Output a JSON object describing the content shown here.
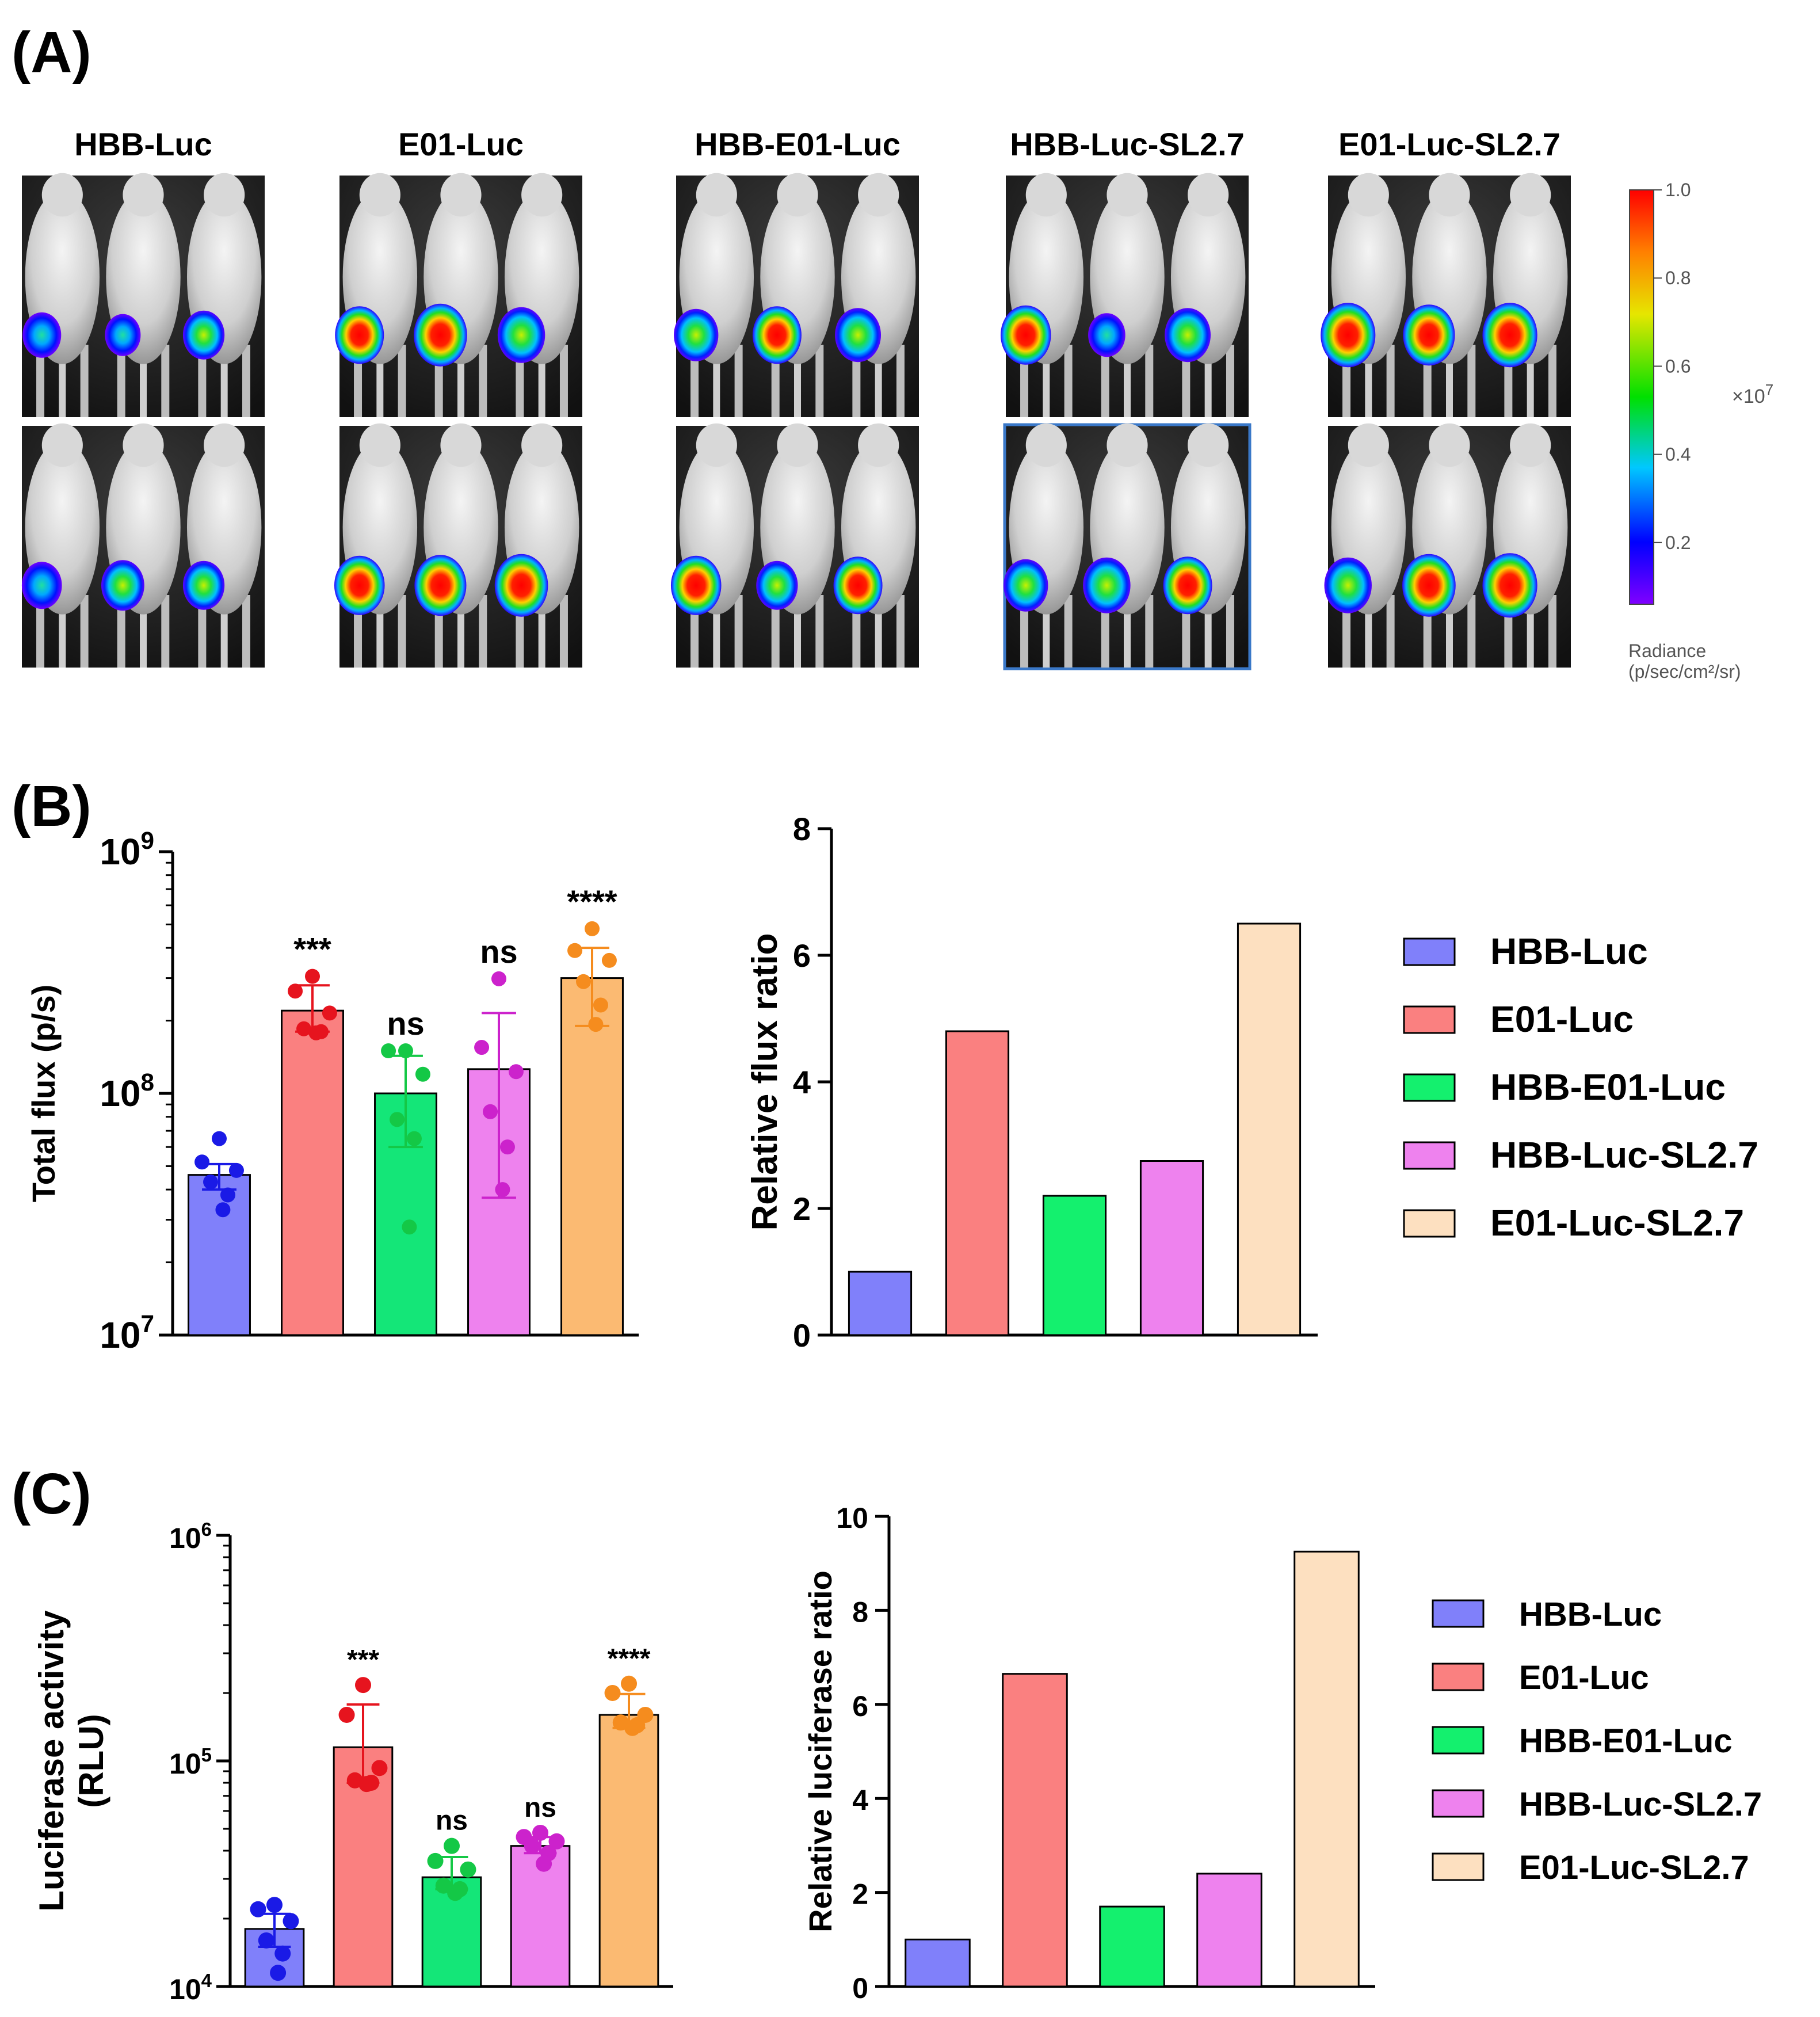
{
  "panels": {
    "a": {
      "label": "(A)"
    },
    "b": {
      "label": "(B)"
    },
    "c": {
      "label": "(C)"
    }
  },
  "imaging": {
    "groups": [
      "HBB-Luc",
      "E01-Luc",
      "HBB-E01-Luc",
      "HBB-Luc-SL2.7",
      "E01-Luc-SL2.7"
    ],
    "intensity": [
      [
        0.45,
        0.35,
        0.55
      ],
      [
        0.8,
        0.95,
        0.75
      ],
      [
        0.65,
        0.8,
        0.7
      ],
      [
        0.85,
        0.4,
        0.7
      ],
      [
        1.0,
        0.9,
        1.0
      ],
      [
        0.5,
        0.6,
        0.55
      ],
      [
        0.85,
        0.9,
        0.95
      ],
      [
        0.85,
        0.55,
        0.8
      ],
      [
        0.65,
        0.75,
        0.8
      ],
      [
        0.75,
        0.95,
        1.0
      ]
    ],
    "colorbar": {
      "ticks": [
        "1.0",
        "0.8",
        "0.6",
        "0.4",
        "0.2"
      ],
      "tick_values": [
        1.0,
        0.8,
        0.6,
        0.4,
        0.2
      ],
      "range": [
        0.06,
        1.0
      ],
      "multiplier": "×10",
      "exponent": "7",
      "title": "Radiance",
      "units": "(p/sec/cm²/sr)"
    }
  },
  "colors": {
    "group_fills": [
      "#8080fa",
      "#fa8080",
      "#14e678",
      "#ee82ee",
      "#fbba72"
    ],
    "group_points": [
      "#1a1ae6",
      "#e6141e",
      "#14c846",
      "#cc22cc",
      "#f58c1e"
    ],
    "ratio_fills": [
      "#8080fa",
      "#fa8080",
      "#14f06e",
      "#ee82ee",
      "#fde0c0"
    ]
  },
  "chart_data": [
    {
      "id": "b-left",
      "type": "bar",
      "scale": "log",
      "ylabel": "Total flux (p/s)",
      "ylim": [
        10000000,
        1000000000
      ],
      "yticks": [
        {
          "base": "10",
          "exp": "7"
        },
        {
          "base": "10",
          "exp": "8"
        },
        {
          "base": "10",
          "exp": "9"
        }
      ],
      "categories": [
        "HBB-Luc",
        "E01-Luc",
        "HBB-E01-Luc",
        "HBB-Luc-SL2.7",
        "E01-Luc-SL2.7"
      ],
      "values": [
        46000000,
        220000000,
        100000000,
        126000000,
        300000000
      ],
      "errors": [
        [
          40000000,
          51000000
        ],
        [
          180000000,
          280000000
        ],
        [
          60000000,
          143000000
        ],
        [
          37000000,
          215000000
        ],
        [
          190000000,
          400000000
        ]
      ],
      "points": [
        [
          65000000,
          52000000,
          48000000,
          43000000,
          38000000,
          33000000
        ],
        [
          305000000,
          265000000,
          215000000,
          185000000,
          180000000,
          178000000
        ],
        [
          150000000,
          150000000,
          120000000,
          78000000,
          65000000,
          28000000
        ],
        [
          298000000,
          155000000,
          123000000,
          84000000,
          60000000,
          40000000
        ],
        [
          480000000,
          390000000,
          355000000,
          290000000,
          232000000,
          193000000
        ]
      ],
      "annotations": [
        "",
        "***",
        "ns",
        "ns",
        "****"
      ]
    },
    {
      "id": "b-right",
      "type": "bar",
      "ylabel": "Relative flux ratio",
      "ylim": [
        0,
        8
      ],
      "yticks": [
        "0",
        "2",
        "4",
        "6",
        "8"
      ],
      "categories": [
        "HBB-Luc",
        "E01-Luc",
        "HBB-E01-Luc",
        "HBB-Luc-SL2.7",
        "E01-Luc-SL2.7"
      ],
      "values": [
        1.0,
        4.8,
        2.2,
        2.75,
        6.5
      ],
      "legend": [
        "HBB-Luc",
        "E01-Luc",
        "HBB-E01-Luc",
        "HBB-Luc-SL2.7",
        "E01-Luc-SL2.7"
      ]
    },
    {
      "id": "c-left",
      "type": "bar",
      "scale": "log",
      "ylabel_line1": "Luciferase activity",
      "ylabel_line2": "(RLU)",
      "ylim": [
        10000,
        1000000
      ],
      "yticks": [
        {
          "base": "10",
          "exp": "4"
        },
        {
          "base": "10",
          "exp": "5"
        },
        {
          "base": "10",
          "exp": "6"
        }
      ],
      "categories": [
        "HBB-Luc",
        "E01-Luc",
        "HBB-E01-Luc",
        "HBB-Luc-SL2.7",
        "E01-Luc-SL2.7"
      ],
      "values": [
        18000,
        115000,
        30500,
        42000,
        160000
      ],
      "errors": [
        [
          15000,
          21000
        ],
        [
          80000,
          178000
        ],
        [
          27000,
          37500
        ],
        [
          39000,
          46000
        ],
        [
          140000,
          198000
        ]
      ],
      "points": [
        [
          23000,
          22000,
          19500,
          16000,
          14000,
          11500
        ],
        [
          217000,
          160000,
          93000,
          82000,
          80000,
          79000
        ],
        [
          42000,
          36000,
          33000,
          28000,
          27000,
          26000
        ],
        [
          48000,
          46000,
          44000,
          42000,
          39000,
          35000
        ],
        [
          220000,
          200000,
          160000,
          148000,
          144000,
          140000
        ]
      ],
      "annotations": [
        "",
        "***",
        "ns",
        "ns",
        "****"
      ]
    },
    {
      "id": "c-right",
      "type": "bar",
      "ylabel": "Relative luciferase ratio",
      "ylim": [
        0,
        10
      ],
      "yticks": [
        "0",
        "2",
        "4",
        "6",
        "8",
        "10"
      ],
      "categories": [
        "HBB-Luc",
        "E01-Luc",
        "HBB-E01-Luc",
        "HBB-Luc-SL2.7",
        "E01-Luc-SL2.7"
      ],
      "values": [
        1.0,
        6.65,
        1.7,
        2.4,
        9.25
      ],
      "legend": [
        "HBB-Luc",
        "E01-Luc",
        "HBB-E01-Luc",
        "HBB-Luc-SL2.7",
        "E01-Luc-SL2.7"
      ]
    }
  ]
}
